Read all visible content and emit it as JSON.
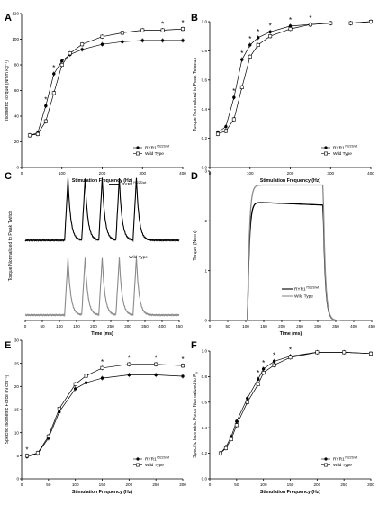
{
  "chart_data": [
    {
      "id": "A",
      "type": "line",
      "panel_label": "A",
      "xlabel": "Stimulation Frequency (Hz)",
      "ylabel": "Isometric Torque (Nmm kg⁻¹)",
      "xlim": [
        0,
        400
      ],
      "ylim": [
        0,
        120
      ],
      "xticks": [
        0,
        100,
        200,
        300,
        400
      ],
      "yticks": [
        0,
        20,
        40,
        60,
        80,
        100,
        120
      ],
      "x": [
        20,
        40,
        60,
        80,
        100,
        120,
        150,
        200,
        250,
        300,
        350,
        400
      ],
      "series": [
        {
          "name": "RYR1",
          "name_sup": "Y522S/wt",
          "marker": "filled-circle",
          "values": [
            25,
            27,
            48,
            73,
            83,
            88,
            92,
            96,
            98,
            99,
            99,
            99
          ]
        },
        {
          "name": "Wild Type",
          "marker": "open-square",
          "values": [
            25,
            26,
            36,
            58,
            80,
            89,
            96,
            102,
            105,
            107,
            107,
            108
          ]
        }
      ],
      "significance_x": [
        60,
        80,
        350,
        400
      ],
      "legend_position": "lower-right"
    },
    {
      "id": "B",
      "type": "line",
      "panel_label": "B",
      "xlabel": "Stimulation Frequency (Hz)",
      "ylabel": "Torque Normalized to Peak Tetanus",
      "xlim": [
        0,
        400
      ],
      "ylim": [
        0,
        1.0
      ],
      "xticks": [
        0,
        100,
        200,
        300,
        400
      ],
      "yticks": [
        0.0,
        0.2,
        0.4,
        0.6,
        0.8,
        1.0
      ],
      "x": [
        20,
        40,
        60,
        80,
        100,
        120,
        150,
        200,
        250,
        300,
        350,
        400
      ],
      "series": [
        {
          "name": "RYR1",
          "name_sup": "Y522S/wt",
          "marker": "filled-circle",
          "values": [
            0.24,
            0.28,
            0.48,
            0.74,
            0.84,
            0.89,
            0.93,
            0.97,
            0.98,
            0.99,
            0.99,
            1.0
          ]
        },
        {
          "name": "Wild Type",
          "marker": "open-square",
          "values": [
            0.23,
            0.25,
            0.33,
            0.55,
            0.76,
            0.84,
            0.9,
            0.95,
            0.98,
            0.99,
            0.99,
            1.0
          ]
        }
      ],
      "significance_x": [
        60,
        80,
        100,
        120,
        150,
        200,
        250
      ],
      "legend_position": "lower-right"
    },
    {
      "id": "C",
      "type": "line",
      "panel_label": "C",
      "xlabel": "Time (ms)",
      "ylabel": "Torque Normalized to Peak Twitch",
      "xlim": [
        0,
        450
      ],
      "xticks": [
        0,
        50,
        100,
        150,
        200,
        250,
        300,
        350,
        400,
        450
      ],
      "pulse_onsets_ms": [
        115,
        165,
        215,
        265,
        315
      ],
      "series": [
        {
          "name": "RYR1",
          "name_sup": "Y522S/wt",
          "color": "#000000",
          "peak": 1.0
        },
        {
          "name": "Wild Type",
          "color": "#8a8a8a",
          "peak": 0.92
        }
      ]
    },
    {
      "id": "D",
      "type": "line",
      "panel_label": "D",
      "xlabel": "Time (ms)",
      "ylabel": "Torque (Nmm)",
      "xlim": [
        0,
        450
      ],
      "ylim": [
        0,
        3
      ],
      "xticks": [
        0,
        50,
        100,
        150,
        200,
        250,
        300,
        350,
        400,
        450
      ],
      "yticks": [
        0,
        1,
        2,
        3
      ],
      "stim_window_ms": [
        105,
        315
      ],
      "series": [
        {
          "name": "RYR1",
          "name_sup": "Y522S/wt",
          "color": "#000000",
          "plateau": 2.38
        },
        {
          "name": "Wild Type",
          "color": "#8a8a8a",
          "plateau": 2.72
        }
      ]
    },
    {
      "id": "E",
      "type": "line",
      "panel_label": "E",
      "xlabel": "Stimulation Frequency (Hz)",
      "ylabel": "Specific Isometric Force (N cm⁻²)",
      "xlim": [
        0,
        300
      ],
      "ylim": [
        0,
        30
      ],
      "xticks": [
        0,
        50,
        100,
        150,
        200,
        250,
        300
      ],
      "yticks": [
        0,
        5,
        10,
        15,
        20,
        25,
        30
      ],
      "x": [
        10,
        30,
        50,
        70,
        100,
        120,
        150,
        200,
        250,
        300
      ],
      "series": [
        {
          "name": "RYR1",
          "name_sup": "Y522S/wt",
          "marker": "filled-circle",
          "values": [
            4.8,
            5.5,
            8.8,
            14.5,
            19.5,
            20.8,
            21.8,
            22.5,
            22.5,
            22.2
          ]
        },
        {
          "name": "Wild Type",
          "marker": "open-square",
          "values": [
            5.0,
            5.6,
            9.2,
            15.2,
            20.5,
            22.3,
            24.0,
            24.8,
            24.8,
            24.5
          ]
        }
      ],
      "significance_x": [
        10,
        150,
        200,
        250,
        300
      ],
      "legend_position": "lower-right"
    },
    {
      "id": "F",
      "type": "line",
      "panel_label": "F",
      "xlabel": "Stimulation Frequency (Hz)",
      "ylabel": "Specific Isometric Force Normalized to P",
      "ylabel_sub": "o",
      "xlim": [
        0,
        300
      ],
      "ylim": [
        0,
        1.0
      ],
      "xticks": [
        0,
        50,
        100,
        150,
        200,
        250,
        300
      ],
      "yticks": [
        0.0,
        0.2,
        0.4,
        0.6,
        0.8,
        1.0
      ],
      "x": [
        20,
        30,
        40,
        50,
        70,
        90,
        100,
        120,
        150,
        200,
        250,
        300
      ],
      "series": [
        {
          "name": "RYR1",
          "name_sup": "Y522S/wt",
          "marker": "filled-circle",
          "values": [
            0.2,
            0.25,
            0.33,
            0.45,
            0.63,
            0.78,
            0.86,
            0.92,
            0.96,
            0.99,
            0.99,
            0.98
          ]
        },
        {
          "name": "Wild Type",
          "marker": "open-square",
          "values": [
            0.2,
            0.24,
            0.31,
            0.42,
            0.6,
            0.74,
            0.83,
            0.89,
            0.95,
            0.99,
            0.99,
            0.98
          ]
        }
      ],
      "significance_x": [
        90,
        100,
        120,
        150
      ],
      "legend_position": "lower-right"
    }
  ],
  "significance_symbol": "*"
}
